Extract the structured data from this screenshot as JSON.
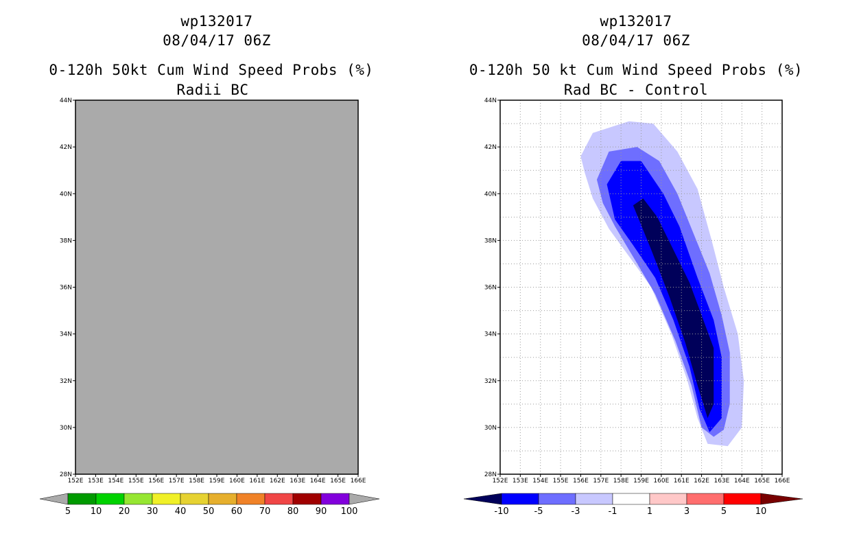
{
  "chart_data": [
    {
      "type": "heatmap",
      "title_lines": [
        "wp132017",
        "08/04/17 06Z",
        "0-120h 50kt Cum Wind Speed Probs (%)",
        "Radii BC"
      ],
      "x_ticks": [
        "152E",
        "153E",
        "154E",
        "155E",
        "156E",
        "157E",
        "158E",
        "159E",
        "160E",
        "161E",
        "162E",
        "163E",
        "164E",
        "165E",
        "166E"
      ],
      "y_ticks": [
        "28N",
        "30N",
        "32N",
        "34N",
        "36N",
        "38N",
        "40N",
        "42N",
        "44N"
      ],
      "xlim": [
        152,
        166
      ],
      "ylim": [
        28,
        44
      ],
      "grid": false,
      "field": "uniform no-data",
      "field_color": "#aaaaaa",
      "colorbar": {
        "labels": [
          "5",
          "10",
          "20",
          "30",
          "40",
          "50",
          "60",
          "70",
          "80",
          "90",
          "100"
        ],
        "colors": [
          "#009a00",
          "#00d200",
          "#96e632",
          "#f0f028",
          "#e6d232",
          "#e6af2d",
          "#f08228",
          "#f04646",
          "#a00000",
          "#8200dc"
        ],
        "end_color": "#aaaaaa"
      }
    },
    {
      "type": "heatmap",
      "title_lines": [
        "wp132017",
        "08/04/17 06Z",
        "0-120h 50 kt Cum Wind Speed Probs (%)",
        "Rad BC - Control"
      ],
      "x_ticks": [
        "152E",
        "153E",
        "154E",
        "155E",
        "156E",
        "157E",
        "158E",
        "159E",
        "160E",
        "161E",
        "162E",
        "163E",
        "164E",
        "165E",
        "166E"
      ],
      "y_ticks": [
        "28N",
        "30N",
        "32N",
        "34N",
        "36N",
        "38N",
        "40N",
        "42N",
        "44N"
      ],
      "xlim": [
        152,
        166
      ],
      "ylim": [
        28,
        44
      ],
      "grid": true,
      "contour_levels": [
        {
          "range": "-1 to -3",
          "color": "#c8c8ff",
          "points": [
            [
              156.0,
              41.6
            ],
            [
              156.6,
              42.6
            ],
            [
              158.4,
              43.1
            ],
            [
              159.6,
              43.0
            ],
            [
              160.8,
              41.8
            ],
            [
              161.8,
              40.2
            ],
            [
              162.5,
              38.0
            ],
            [
              163.1,
              36.0
            ],
            [
              163.8,
              34.0
            ],
            [
              164.1,
              32.0
            ],
            [
              164.0,
              30.0
            ],
            [
              163.3,
              29.2
            ],
            [
              162.3,
              29.3
            ],
            [
              161.8,
              30.4
            ],
            [
              161.3,
              32.0
            ],
            [
              160.5,
              34.0
            ],
            [
              159.5,
              36.0
            ],
            [
              158.5,
              37.2
            ],
            [
              157.4,
              38.5
            ],
            [
              156.6,
              39.8
            ],
            [
              156.2,
              40.9
            ]
          ]
        },
        {
          "range": "-3 to -5",
          "color": "#6e6eff",
          "points": [
            [
              156.8,
              40.6
            ],
            [
              157.4,
              41.8
            ],
            [
              158.8,
              42.0
            ],
            [
              159.9,
              41.4
            ],
            [
              160.8,
              40.0
            ],
            [
              161.6,
              38.3
            ],
            [
              162.4,
              36.6
            ],
            [
              163.0,
              34.8
            ],
            [
              163.4,
              33.2
            ],
            [
              163.4,
              31.0
            ],
            [
              163.1,
              29.9
            ],
            [
              162.6,
              29.6
            ],
            [
              162.0,
              30.0
            ],
            [
              161.5,
              31.8
            ],
            [
              160.7,
              33.7
            ],
            [
              159.7,
              35.7
            ],
            [
              158.6,
              37.3
            ],
            [
              157.7,
              38.6
            ],
            [
              157.1,
              39.6
            ]
          ]
        },
        {
          "range": "-5 to -10",
          "color": "#0000ff",
          "points": [
            [
              157.3,
              40.4
            ],
            [
              158.0,
              41.4
            ],
            [
              159.0,
              41.4
            ],
            [
              160.1,
              40.0
            ],
            [
              160.9,
              38.6
            ],
            [
              161.8,
              36.4
            ],
            [
              162.6,
              34.6
            ],
            [
              163.0,
              33.0
            ],
            [
              163.0,
              30.4
            ],
            [
              162.4,
              29.8
            ],
            [
              161.9,
              30.8
            ],
            [
              161.4,
              32.6
            ],
            [
              160.6,
              34.6
            ],
            [
              159.7,
              36.4
            ],
            [
              158.6,
              37.8
            ],
            [
              157.7,
              38.9
            ]
          ]
        },
        {
          "range": "< -10",
          "color": "#00005a",
          "points": [
            [
              158.6,
              39.5
            ],
            [
              159.1,
              39.8
            ],
            [
              159.8,
              39.0
            ],
            [
              160.6,
              37.6
            ],
            [
              161.4,
              36.2
            ],
            [
              162.0,
              34.8
            ],
            [
              162.6,
              33.4
            ],
            [
              162.6,
              31.0
            ],
            [
              162.3,
              30.4
            ],
            [
              161.8,
              31.8
            ],
            [
              161.2,
              33.6
            ],
            [
              160.4,
              35.6
            ],
            [
              159.5,
              37.6
            ]
          ]
        }
      ],
      "colorbar": {
        "labels": [
          "-10",
          "-5",
          "-3",
          "-1",
          "1",
          "3",
          "5",
          "10"
        ],
        "colors": [
          "#0000ff",
          "#6e6eff",
          "#c8c8ff",
          "#ffffff",
          "#ffc8c8",
          "#ff6e6e",
          "#ff0000"
        ],
        "low_end_color": "#00005a",
        "high_end_color": "#780000"
      }
    }
  ]
}
